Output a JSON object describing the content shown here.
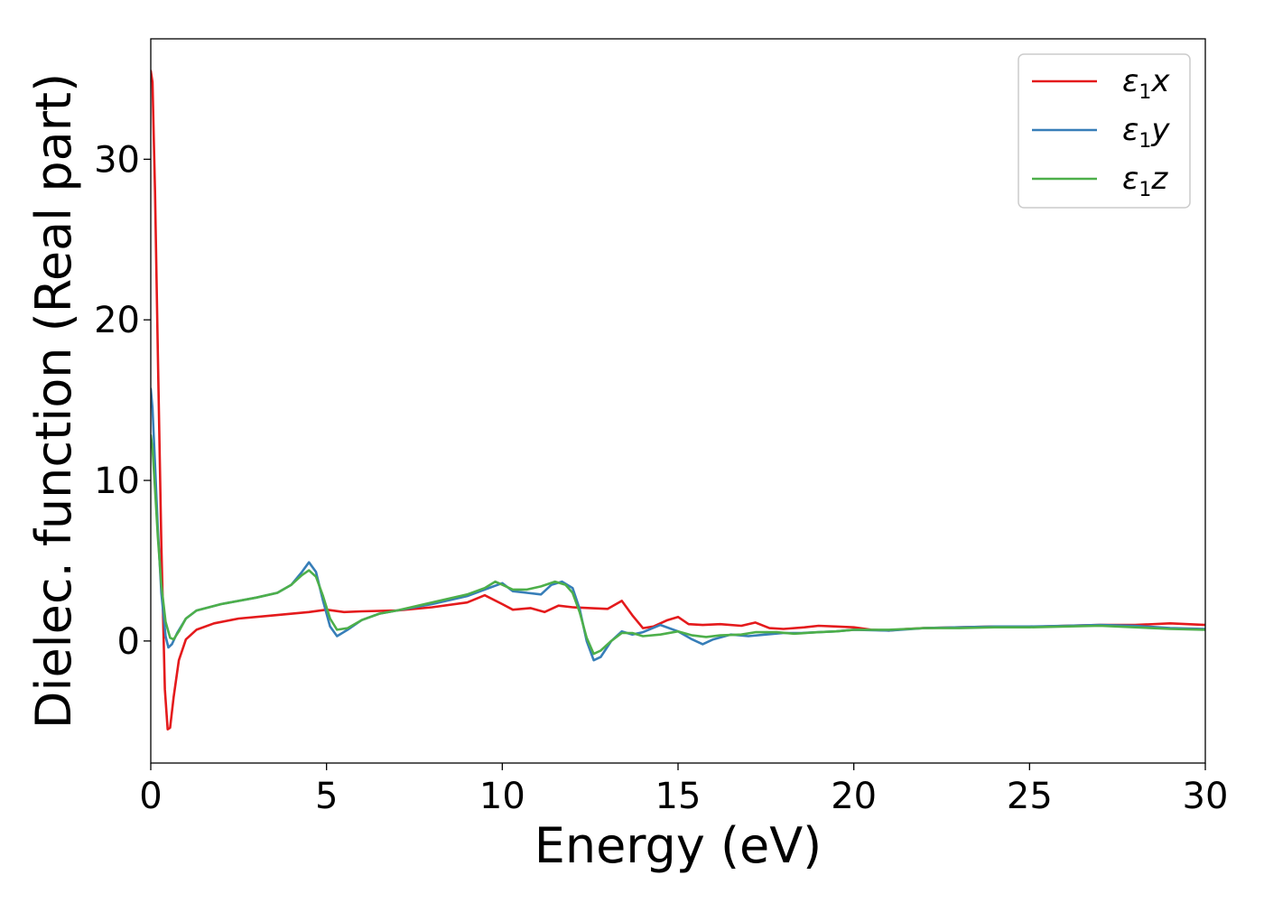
{
  "chart_data": {
    "type": "line",
    "xlabel": "Energy (eV)",
    "ylabel": "Dielec. function (Real part)",
    "xlim": [
      0,
      30
    ],
    "ylim": [
      -7.6,
      37.5
    ],
    "x_ticks": [
      0,
      5,
      10,
      15,
      20,
      25,
      30
    ],
    "y_ticks": [
      0,
      10,
      20,
      30
    ],
    "grid": false,
    "legend_position": "top-right",
    "series": [
      {
        "name": "ε1x",
        "legend_main": "ε",
        "legend_sub": "1",
        "legend_var": "x",
        "color": "#e41a1c",
        "points": [
          [
            0,
            35.5
          ],
          [
            0.05,
            34.8
          ],
          [
            0.12,
            28
          ],
          [
            0.2,
            18
          ],
          [
            0.3,
            6
          ],
          [
            0.4,
            -3
          ],
          [
            0.48,
            -5.5
          ],
          [
            0.55,
            -5.4
          ],
          [
            0.65,
            -3.5
          ],
          [
            0.8,
            -1.2
          ],
          [
            1,
            0.1
          ],
          [
            1.3,
            0.7
          ],
          [
            1.8,
            1.1
          ],
          [
            2.5,
            1.4
          ],
          [
            3.5,
            1.6
          ],
          [
            4.5,
            1.8
          ],
          [
            5.0,
            1.95
          ],
          [
            5.5,
            1.8
          ],
          [
            6,
            1.85
          ],
          [
            7,
            1.9
          ],
          [
            8,
            2.1
          ],
          [
            9,
            2.4
          ],
          [
            9.5,
            2.85
          ],
          [
            10,
            2.3
          ],
          [
            10.3,
            1.95
          ],
          [
            10.8,
            2.05
          ],
          [
            11.2,
            1.8
          ],
          [
            11.6,
            2.2
          ],
          [
            12,
            2.1
          ],
          [
            12.5,
            2.05
          ],
          [
            13,
            2.0
          ],
          [
            13.4,
            2.5
          ],
          [
            13.7,
            1.6
          ],
          [
            14,
            0.8
          ],
          [
            14.3,
            0.9
          ],
          [
            14.7,
            1.3
          ],
          [
            15.0,
            1.5
          ],
          [
            15.3,
            1.05
          ],
          [
            15.7,
            1.0
          ],
          [
            16.2,
            1.05
          ],
          [
            16.8,
            0.95
          ],
          [
            17.2,
            1.15
          ],
          [
            17.6,
            0.8
          ],
          [
            18,
            0.75
          ],
          [
            18.6,
            0.85
          ],
          [
            19,
            0.95
          ],
          [
            19.5,
            0.9
          ],
          [
            20,
            0.85
          ],
          [
            20.5,
            0.7
          ],
          [
            21,
            0.65
          ],
          [
            21.5,
            0.75
          ],
          [
            22,
            0.8
          ],
          [
            23,
            0.85
          ],
          [
            24,
            0.9
          ],
          [
            25,
            0.88
          ],
          [
            26,
            0.95
          ],
          [
            27,
            1.0
          ],
          [
            28,
            1.0
          ],
          [
            29,
            1.1
          ],
          [
            30,
            1.0
          ]
        ]
      },
      {
        "name": "ε1y",
        "legend_main": "ε",
        "legend_sub": "1",
        "legend_var": "y",
        "color": "#377eb8",
        "points": [
          [
            0,
            15.7
          ],
          [
            0.05,
            14.5
          ],
          [
            0.12,
            11
          ],
          [
            0.2,
            7
          ],
          [
            0.3,
            3
          ],
          [
            0.42,
            0.3
          ],
          [
            0.5,
            -0.4
          ],
          [
            0.6,
            -0.2
          ],
          [
            0.75,
            0.5
          ],
          [
            1,
            1.4
          ],
          [
            1.3,
            1.9
          ],
          [
            2,
            2.3
          ],
          [
            3,
            2.7
          ],
          [
            3.6,
            3.0
          ],
          [
            4.0,
            3.5
          ],
          [
            4.3,
            4.3
          ],
          [
            4.5,
            4.9
          ],
          [
            4.7,
            4.3
          ],
          [
            4.9,
            2.5
          ],
          [
            5.1,
            0.9
          ],
          [
            5.3,
            0.3
          ],
          [
            5.6,
            0.7
          ],
          [
            6,
            1.3
          ],
          [
            6.5,
            1.7
          ],
          [
            7,
            1.9
          ],
          [
            8,
            2.3
          ],
          [
            9,
            2.8
          ],
          [
            9.5,
            3.2
          ],
          [
            10,
            3.6
          ],
          [
            10.3,
            3.1
          ],
          [
            10.7,
            3.0
          ],
          [
            11.1,
            2.9
          ],
          [
            11.4,
            3.5
          ],
          [
            11.7,
            3.7
          ],
          [
            12,
            3.3
          ],
          [
            12.2,
            2.0
          ],
          [
            12.4,
            0.0
          ],
          [
            12.6,
            -1.2
          ],
          [
            12.8,
            -1.0
          ],
          [
            13.1,
            0.0
          ],
          [
            13.4,
            0.6
          ],
          [
            13.7,
            0.4
          ],
          [
            14,
            0.55
          ],
          [
            14.5,
            1.0
          ],
          [
            15,
            0.6
          ],
          [
            15.4,
            0.1
          ],
          [
            15.7,
            -0.2
          ],
          [
            16,
            0.1
          ],
          [
            16.5,
            0.4
          ],
          [
            17,
            0.3
          ],
          [
            17.5,
            0.4
          ],
          [
            18,
            0.5
          ],
          [
            18.5,
            0.5
          ],
          [
            19,
            0.55
          ],
          [
            19.5,
            0.6
          ],
          [
            20,
            0.7
          ],
          [
            21,
            0.65
          ],
          [
            22,
            0.8
          ],
          [
            23,
            0.85
          ],
          [
            24,
            0.9
          ],
          [
            25,
            0.9
          ],
          [
            26,
            0.95
          ],
          [
            27,
            1.0
          ],
          [
            28,
            0.95
          ],
          [
            29,
            0.8
          ],
          [
            30,
            0.75
          ]
        ]
      },
      {
        "name": "ε1z",
        "legend_main": "ε",
        "legend_sub": "1",
        "legend_var": "z",
        "color": "#4daf4a",
        "points": [
          [
            0,
            12.8
          ],
          [
            0.05,
            12.0
          ],
          [
            0.12,
            9.5
          ],
          [
            0.2,
            6.5
          ],
          [
            0.3,
            3.5
          ],
          [
            0.42,
            1.2
          ],
          [
            0.55,
            0.2
          ],
          [
            0.65,
            0.1
          ],
          [
            0.8,
            0.6
          ],
          [
            1,
            1.4
          ],
          [
            1.3,
            1.9
          ],
          [
            2,
            2.3
          ],
          [
            3,
            2.7
          ],
          [
            3.6,
            3.0
          ],
          [
            4.0,
            3.5
          ],
          [
            4.3,
            4.1
          ],
          [
            4.5,
            4.4
          ],
          [
            4.7,
            4.0
          ],
          [
            4.9,
            2.8
          ],
          [
            5.1,
            1.4
          ],
          [
            5.3,
            0.7
          ],
          [
            5.6,
            0.8
          ],
          [
            6,
            1.3
          ],
          [
            6.5,
            1.7
          ],
          [
            7,
            1.9
          ],
          [
            8,
            2.4
          ],
          [
            9,
            2.9
          ],
          [
            9.5,
            3.3
          ],
          [
            9.8,
            3.7
          ],
          [
            10,
            3.5
          ],
          [
            10.3,
            3.2
          ],
          [
            10.7,
            3.2
          ],
          [
            11.1,
            3.4
          ],
          [
            11.5,
            3.7
          ],
          [
            11.8,
            3.5
          ],
          [
            12,
            3.0
          ],
          [
            12.2,
            1.8
          ],
          [
            12.4,
            0.2
          ],
          [
            12.6,
            -0.8
          ],
          [
            12.8,
            -0.6
          ],
          [
            13.1,
            0.0
          ],
          [
            13.4,
            0.5
          ],
          [
            13.7,
            0.5
          ],
          [
            14,
            0.3
          ],
          [
            14.5,
            0.4
          ],
          [
            15,
            0.6
          ],
          [
            15.4,
            0.35
          ],
          [
            15.8,
            0.25
          ],
          [
            16.2,
            0.35
          ],
          [
            16.8,
            0.4
          ],
          [
            17.2,
            0.55
          ],
          [
            17.8,
            0.55
          ],
          [
            18.3,
            0.45
          ],
          [
            19,
            0.55
          ],
          [
            19.5,
            0.6
          ],
          [
            20,
            0.7
          ],
          [
            21,
            0.7
          ],
          [
            22,
            0.8
          ],
          [
            23,
            0.8
          ],
          [
            24,
            0.85
          ],
          [
            25,
            0.85
          ],
          [
            26,
            0.9
          ],
          [
            27,
            0.95
          ],
          [
            28,
            0.85
          ],
          [
            29,
            0.75
          ],
          [
            30,
            0.7
          ]
        ]
      }
    ]
  }
}
